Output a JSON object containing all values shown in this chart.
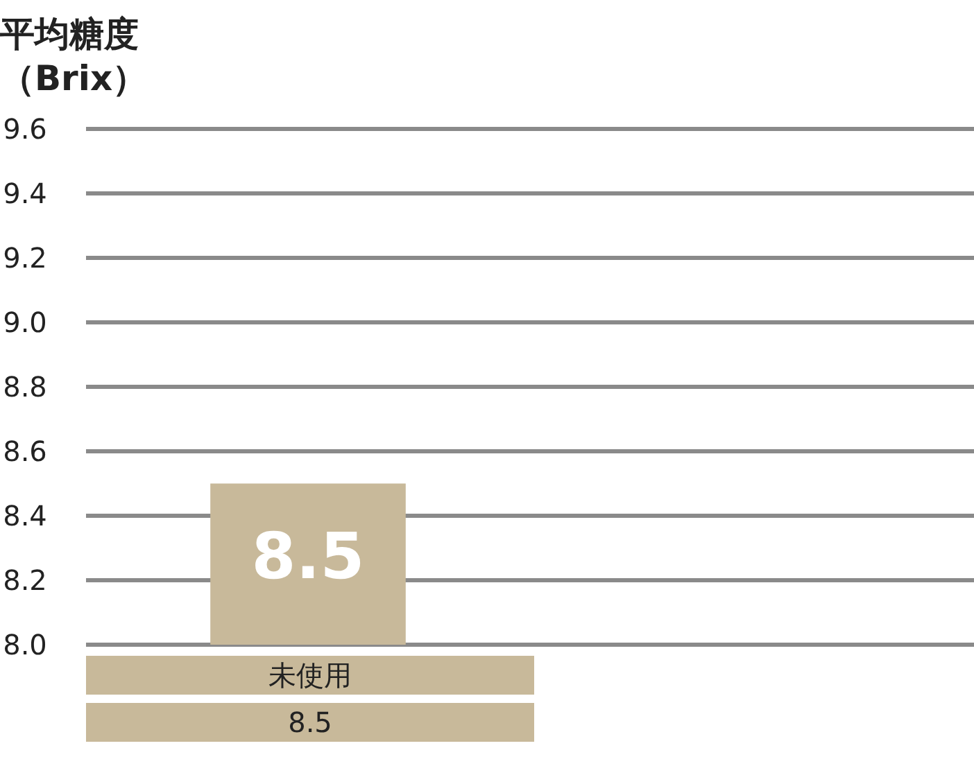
{
  "chart_data": {
    "type": "bar",
    "title": "平均糖度",
    "ylabel": "（Brix）",
    "categories": [
      "未使用",
      null
    ],
    "values": [
      8.5,
      null
    ],
    "annotations": [
      "8.5"
    ],
    "color": "#c8b99a",
    "ylim": [
      8.0,
      9.6
    ],
    "yticks": [
      {
        "value": 8.0,
        "label": "8.0"
      },
      {
        "value": 8.2,
        "label": "8.2"
      },
      {
        "value": 8.4,
        "label": "8.4"
      },
      {
        "value": 8.6,
        "label": "8.6"
      },
      {
        "value": 8.8,
        "label": "8.8"
      },
      {
        "value": 9.0,
        "label": "9.0"
      },
      {
        "value": 9.2,
        "label": "9.2"
      },
      {
        "value": 9.4,
        "label": "9.4"
      },
      {
        "value": 9.6,
        "label": "9.6"
      }
    ],
    "grid": "y",
    "data_labels": true
  }
}
